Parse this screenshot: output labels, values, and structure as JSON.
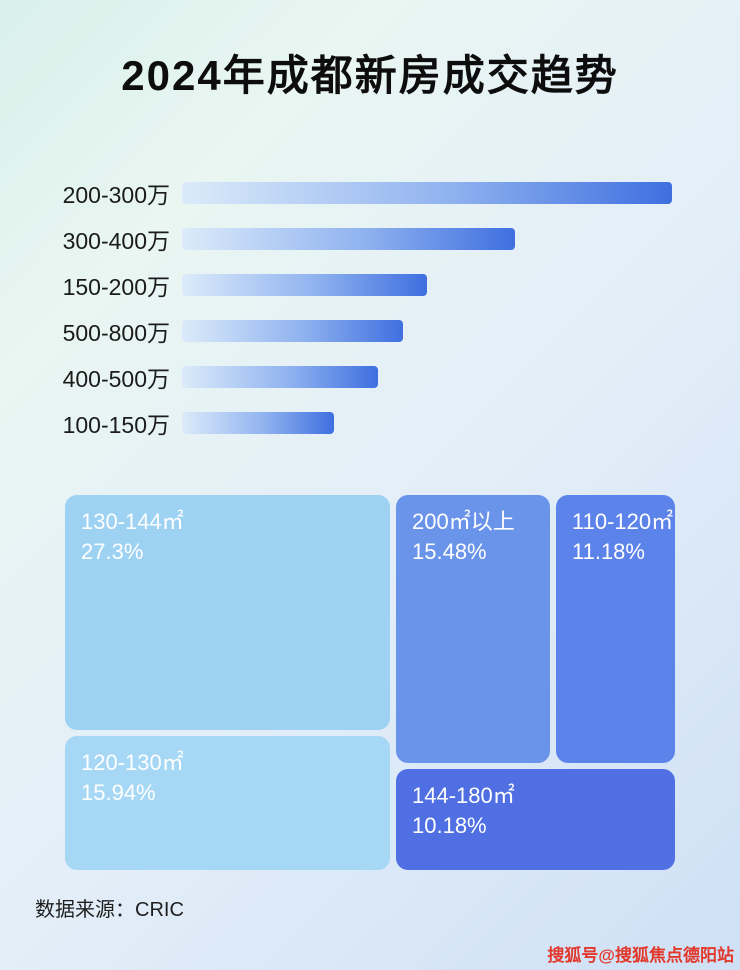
{
  "title": "2024年成都新房成交趋势",
  "chart_data": [
    {
      "type": "bar",
      "orientation": "horizontal",
      "categories": [
        "200-300万",
        "300-400万",
        "150-200万",
        "500-800万",
        "400-500万",
        "100-150万"
      ],
      "values": [
        100,
        68,
        50,
        45,
        40,
        31
      ],
      "value_unit": "relative bar length, percent of longest bar (no numeric axis shown)",
      "xlabel": "",
      "ylabel": "",
      "grid": false,
      "legend": false
    },
    {
      "type": "treemap",
      "items": [
        {
          "label": "130-144㎡",
          "value": 27.3,
          "display": "27.3%"
        },
        {
          "label": "120-130㎡",
          "value": 15.94,
          "display": "15.94%"
        },
        {
          "label": "200㎡以上",
          "value": 15.48,
          "display": "15.48%"
        },
        {
          "label": "110-120㎡",
          "value": 11.18,
          "display": "11.18%"
        },
        {
          "label": "144-180㎡",
          "value": 10.18,
          "display": "10.18%"
        }
      ]
    }
  ],
  "footer": {
    "source": "数据来源：CRIC"
  },
  "watermark": "搜狐号@搜狐焦点德阳站",
  "colors": {
    "bar_gradient_start": "#dcebfa",
    "bar_gradient_end": "#3f6fe0",
    "treemap_130_144": "#9ed2f3",
    "treemap_120_130": "#a6d8f5",
    "treemap_200_plus": "#6a93ea",
    "treemap_110_120": "#5c83e9",
    "treemap_144_180": "#4f6fe2",
    "watermark_red": "#e2382c"
  }
}
